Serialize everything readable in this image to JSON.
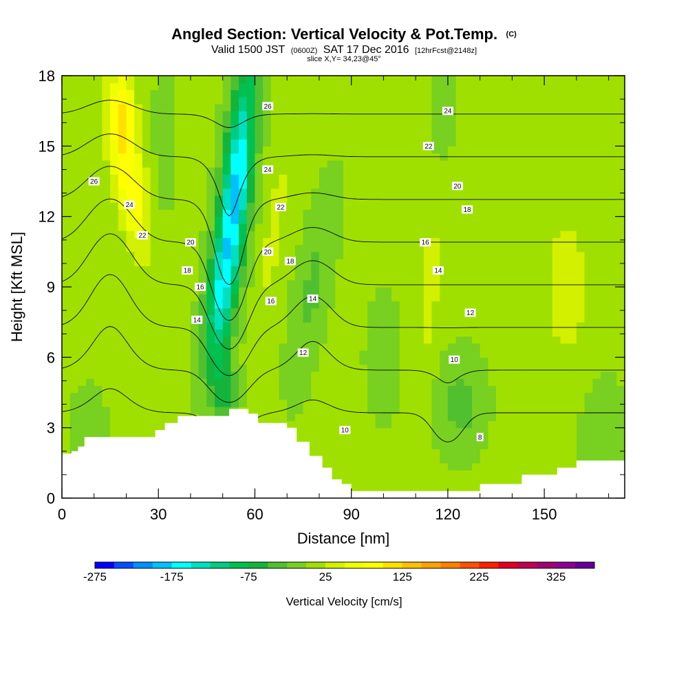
{
  "title": {
    "main": "Angled Section: Vertical Velocity & Pot.Temp.",
    "unit_tag": "(C)",
    "valid_prefix": "Valid 1500 JST",
    "valid_utc": "(0600Z)",
    "valid_date": "SAT 17 Dec 2016",
    "forecast": "[12hrFcst@2148z]",
    "slice": "slice X,Y= 34,23@45°"
  },
  "colors": {
    "frame": "#000000",
    "terrain": "#ffffff",
    "contour": "#000000"
  },
  "chart_data": {
    "type": "heatmap",
    "xlabel": "Distance [nm]",
    "ylabel": "Height [Kft MSL]",
    "xlim": [
      0,
      175
    ],
    "ylim": [
      0,
      18
    ],
    "x_ticks": [
      0,
      30,
      60,
      90,
      120,
      150
    ],
    "x_tick_labels": [
      "0",
      "30",
      "60",
      "90",
      "120",
      "150"
    ],
    "y_ticks": [
      0,
      3,
      6,
      9,
      12,
      15,
      18
    ],
    "y_tick_labels": [
      "0",
      "3",
      "6",
      "9",
      "12",
      "15",
      "18"
    ],
    "colorbar": {
      "title": "Vertical Velocity [cm/s]",
      "min": -275,
      "step": 25,
      "tick_values": [
        -275,
        -175,
        -75,
        25,
        125,
        225,
        325
      ],
      "tick_labels": [
        "-275",
        "-175",
        "-75",
        "25",
        "125",
        "225",
        "325"
      ],
      "colors": [
        "#0000ff",
        "#0050ff",
        "#0090ff",
        "#00c0ff",
        "#00ffff",
        "#00e0c0",
        "#00cc80",
        "#00c050",
        "#14b43c",
        "#50c030",
        "#78d020",
        "#a0e000",
        "#d2f000",
        "#f0ff00",
        "#ffff00",
        "#ffe000",
        "#ffc000",
        "#ffa000",
        "#ff8000",
        "#ff5000",
        "#ff2000",
        "#e00020",
        "#c00050",
        "#a00070",
        "#8c0090",
        "#640096"
      ]
    },
    "velocity_field": {
      "background": 5,
      "blobs": [
        {
          "x": 21,
          "y": 13.5,
          "sx": 5,
          "sy": 3,
          "tilt": -0.42,
          "amp": 90
        },
        {
          "x": 19,
          "y": 16.5,
          "sx": 4,
          "sy": 1.6,
          "tilt": -0.2,
          "amp": 80
        },
        {
          "x": 54,
          "y": 13,
          "sx": 4.5,
          "sy": 5.5,
          "tilt": 0.25,
          "amp": -190
        },
        {
          "x": 48,
          "y": 8,
          "sx": 4,
          "sy": 3,
          "tilt": 0.2,
          "amp": -80
        },
        {
          "x": 51,
          "y": 4.5,
          "sx": 3.5,
          "sy": 1.5,
          "tilt": 0,
          "amp": -60
        },
        {
          "x": 66,
          "y": 11.5,
          "sx": 3,
          "sy": 4,
          "tilt": 0.3,
          "amp": 30
        },
        {
          "x": 78,
          "y": 9,
          "sx": 5,
          "sy": 4,
          "tilt": 0.4,
          "amp": -35
        },
        {
          "x": 114,
          "y": 9,
          "sx": 4,
          "sy": 4,
          "tilt": 0.15,
          "amp": 30
        },
        {
          "x": 124,
          "y": 4,
          "sx": 7,
          "sy": 2,
          "tilt": 0,
          "amp": -40
        },
        {
          "x": 157,
          "y": 9,
          "sx": 8,
          "sy": 4,
          "tilt": 0,
          "amp": 30
        },
        {
          "x": 168,
          "y": 3,
          "sx": 7,
          "sy": 2,
          "tilt": 0,
          "amp": -25
        },
        {
          "x": 8,
          "y": 3,
          "sx": 5,
          "sy": 1.5,
          "tilt": 0,
          "amp": -30
        },
        {
          "x": 118,
          "y": 16.5,
          "sx": 3,
          "sy": 2,
          "tilt": 0,
          "amp": -30
        },
        {
          "x": 32,
          "y": 15.5,
          "sx": 3,
          "sy": 3,
          "tilt": 0,
          "amp": -25
        },
        {
          "x": 100,
          "y": 6,
          "sx": 6,
          "sy": 3,
          "tilt": 0,
          "amp": -15
        }
      ]
    },
    "terrain_profile": [
      [
        0,
        1.9
      ],
      [
        3,
        2.0
      ],
      [
        5,
        2.2
      ],
      [
        7,
        2.6
      ],
      [
        29,
        2.9
      ],
      [
        32,
        3.2
      ],
      [
        36,
        3.5
      ],
      [
        52,
        3.8
      ],
      [
        58,
        3.6
      ],
      [
        61,
        3.2
      ],
      [
        70,
        3.0
      ],
      [
        73,
        2.4
      ],
      [
        77,
        1.8
      ],
      [
        81,
        1.3
      ],
      [
        84,
        0.8
      ],
      [
        87,
        0.6
      ],
      [
        90,
        0.3
      ],
      [
        130,
        0.6
      ],
      [
        143,
        1.0
      ],
      [
        154,
        1.3
      ],
      [
        160,
        1.6
      ],
      [
        175,
        1.6
      ]
    ],
    "isotherm_field": {
      "lapse_per_kft": 1.1,
      "base": 4,
      "levels": [
        8,
        10,
        12,
        14,
        16,
        18,
        20,
        22,
        24,
        26
      ],
      "bumps": [
        {
          "x": 52,
          "y": 9,
          "sx": 7,
          "sy": 5,
          "amp": 4
        },
        {
          "x": 15,
          "y": 10,
          "sx": 9,
          "sy": 6,
          "amp": -2.5
        },
        {
          "x": 78,
          "y": 8,
          "sx": 8,
          "sy": 4,
          "amp": -1.5
        },
        {
          "x": 120,
          "y": 3,
          "sx": 6,
          "sy": 2,
          "amp": 1.5
        }
      ]
    },
    "contour_labels": [
      {
        "text": "26",
        "x": 10,
        "y": 13.5
      },
      {
        "text": "24",
        "x": 21,
        "y": 12.5
      },
      {
        "text": "22",
        "x": 25,
        "y": 11.2
      },
      {
        "text": "20",
        "x": 40,
        "y": 10.9
      },
      {
        "text": "18",
        "x": 39,
        "y": 9.7
      },
      {
        "text": "16",
        "x": 43,
        "y": 9.0
      },
      {
        "text": "14",
        "x": 42,
        "y": 7.6
      },
      {
        "text": "26",
        "x": 64,
        "y": 16.7
      },
      {
        "text": "24",
        "x": 64,
        "y": 14.0
      },
      {
        "text": "22",
        "x": 68,
        "y": 12.4
      },
      {
        "text": "20",
        "x": 64,
        "y": 10.5
      },
      {
        "text": "18",
        "x": 71,
        "y": 10.1
      },
      {
        "text": "16",
        "x": 65,
        "y": 8.4
      },
      {
        "text": "14",
        "x": 78,
        "y": 8.5
      },
      {
        "text": "12",
        "x": 75,
        "y": 6.2
      },
      {
        "text": "10",
        "x": 88,
        "y": 2.9
      },
      {
        "text": "24",
        "x": 120,
        "y": 16.5
      },
      {
        "text": "22",
        "x": 114,
        "y": 15.0
      },
      {
        "text": "20",
        "x": 123,
        "y": 13.3
      },
      {
        "text": "18",
        "x": 126,
        "y": 12.3
      },
      {
        "text": "16",
        "x": 113,
        "y": 10.9
      },
      {
        "text": "14",
        "x": 117,
        "y": 9.7
      },
      {
        "text": "12",
        "x": 127,
        "y": 7.9
      },
      {
        "text": "10",
        "x": 122,
        "y": 5.9
      },
      {
        "text": "8",
        "x": 130,
        "y": 2.6
      }
    ]
  }
}
